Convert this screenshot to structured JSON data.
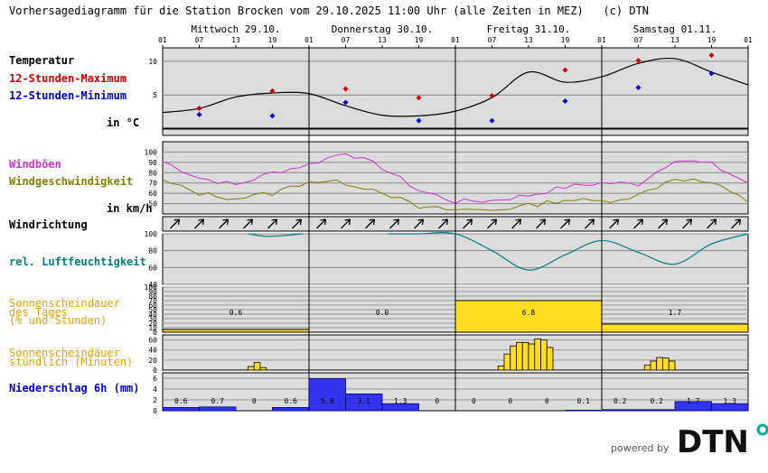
{
  "header": {
    "title": "Vorhersagediagramm für die Station Brocken vom 29.10.2025 11:00 Uhr (alle Zeiten in MEZ)",
    "copyright": "(c) DTN"
  },
  "days": [
    "Mittwoch 29.10.",
    "Donnerstag 30.10.",
    "Freitag 31.10.",
    "Samstag 01.11."
  ],
  "hour_ticks": [
    "01",
    "07",
    "13",
    "19",
    "01",
    "07",
    "13",
    "19",
    "01",
    "07",
    "13",
    "19",
    "01",
    "07",
    "13",
    "19",
    "01"
  ],
  "labels": {
    "temperature": "Temperatur",
    "tmax": "12-Stunden-Maximum",
    "tmin": "12-Stunden-Minimum",
    "temp_unit": "in °C",
    "gust": "Windböen",
    "wind_speed": "Windgeschwindigkeit",
    "wind_unit": "in km/h",
    "wind_dir": "Windrichtung",
    "humidity": "rel. Luftfeuchtigkeit",
    "sun_daily_1": "Sonnenscheindauer",
    "sun_daily_2": "des Tages",
    "sun_daily_3": "(% und Stunden)",
    "sun_hourly_1": "Sonnenscheindauer",
    "sun_hourly_2": "stündlich (Minuten)",
    "precip": "Niederschlag 6h (mm)"
  },
  "brand": {
    "powered_by": "powered by",
    "logo": "DTN"
  },
  "colors": {
    "max": "#cc0000",
    "min": "#0000cc",
    "gust": "#cc33cc",
    "wind": "#808000",
    "humidity": "#008080",
    "sun": "#e8a000",
    "sun_fill": "#ffdd22",
    "precip": "#0000dd",
    "precip_fill": "#3333ee"
  },
  "chart_data": [
    {
      "type": "line",
      "name": "temperature",
      "ylim": [
        -1,
        12
      ],
      "yticks": [
        5,
        10
      ],
      "x_hours": [
        0,
        6,
        12,
        18,
        24,
        30,
        36,
        42,
        48,
        54,
        60,
        66,
        72,
        78,
        84,
        90,
        96
      ],
      "values": [
        2.4,
        3.0,
        4.7,
        5.3,
        5.2,
        3.4,
        2.0,
        1.9,
        2.6,
        4.6,
        8.4,
        6.9,
        7.7,
        9.7,
        10.4,
        8.4,
        6.5
      ],
      "tmax": [
        {
          "x": 6,
          "y": 3.0
        },
        {
          "x": 18,
          "y": 5.6
        },
        {
          "x": 30,
          "y": 5.9
        },
        {
          "x": 42,
          "y": 4.6
        },
        {
          "x": 54,
          "y": 4.9
        },
        {
          "x": 66,
          "y": 8.7
        },
        {
          "x": 78,
          "y": 10.1
        },
        {
          "x": 90,
          "y": 10.9
        }
      ],
      "tmin": [
        {
          "x": 6,
          "y": 2.1
        },
        {
          "x": 18,
          "y": 1.9
        },
        {
          "x": 30,
          "y": 3.9
        },
        {
          "x": 42,
          "y": 1.2
        },
        {
          "x": 54,
          "y": 1.2
        },
        {
          "x": 66,
          "y": 4.1
        },
        {
          "x": 78,
          "y": 6.1
        },
        {
          "x": 90,
          "y": 8.2
        }
      ]
    },
    {
      "type": "line",
      "name": "wind",
      "ylim": [
        40,
        110
      ],
      "yticks": [
        50,
        60,
        70,
        80,
        90,
        100
      ],
      "x_hours": [
        0,
        6,
        12,
        18,
        24,
        30,
        36,
        42,
        48,
        54,
        60,
        66,
        72,
        78,
        84,
        90,
        96
      ],
      "gust": [
        91,
        75,
        68,
        80,
        88,
        100,
        85,
        63,
        52,
        53,
        58,
        66,
        70,
        69,
        93,
        88,
        70
      ],
      "speed": [
        72,
        60,
        55,
        60,
        72,
        70,
        62,
        46,
        44,
        44,
        48,
        54,
        52,
        58,
        75,
        70,
        52
      ]
    },
    {
      "type": "line",
      "name": "wind_direction",
      "arrows": 24,
      "angle_deg": 45
    },
    {
      "type": "line",
      "name": "humidity",
      "ylim": [
        40,
        100
      ],
      "yticks": [
        40,
        60,
        80,
        100
      ],
      "segments": [
        {
          "x": [
            14,
            17,
            20,
            23
          ],
          "y": [
            100,
            97,
            98,
            100
          ]
        },
        {
          "x": [
            37,
            42,
            48,
            54,
            60,
            66,
            72,
            78,
            84,
            90,
            96
          ],
          "y": [
            100,
            100,
            100,
            80,
            57,
            75,
            92,
            78,
            64,
            88,
            100
          ]
        }
      ]
    },
    {
      "type": "bar",
      "name": "sun_daily",
      "ylim": [
        0,
        100
      ],
      "yticks": [
        0,
        10,
        20,
        30,
        40,
        50,
        60,
        70,
        80,
        90,
        100
      ],
      "categories": [
        "29.10.",
        "30.10.",
        "31.10.",
        "01.11."
      ],
      "percent": [
        6,
        0,
        70,
        18
      ],
      "hours_label": [
        "0.6",
        "0.0",
        "6.8",
        "1.7"
      ]
    },
    {
      "type": "bar",
      "name": "sun_hourly",
      "ylim": [
        0,
        70
      ],
      "yticks": [
        0,
        20,
        40,
        60
      ],
      "bars": [
        {
          "h": 14,
          "v": 7
        },
        {
          "h": 15,
          "v": 15
        },
        {
          "h": 16,
          "v": 5
        },
        {
          "h": 55,
          "v": 8
        },
        {
          "h": 56,
          "v": 32
        },
        {
          "h": 57,
          "v": 48
        },
        {
          "h": 58,
          "v": 55
        },
        {
          "h": 59,
          "v": 55
        },
        {
          "h": 60,
          "v": 52
        },
        {
          "h": 61,
          "v": 62
        },
        {
          "h": 62,
          "v": 60
        },
        {
          "h": 63,
          "v": 45
        },
        {
          "h": 79,
          "v": 10
        },
        {
          "h": 80,
          "v": 18
        },
        {
          "h": 81,
          "v": 25
        },
        {
          "h": 82,
          "v": 24
        },
        {
          "h": 83,
          "v": 18
        }
      ]
    },
    {
      "type": "bar",
      "name": "precip_6h",
      "ylim": [
        0,
        7
      ],
      "yticks": [
        0,
        2,
        4,
        6
      ],
      "values": [
        0.6,
        0.7,
        0,
        0.6,
        5.9,
        3.1,
        1.3,
        0,
        0,
        0,
        0,
        0.1,
        0.2,
        0.2,
        1.7,
        1.3
      ],
      "labels": [
        "0.6",
        "0.7",
        "0",
        "0.6",
        "5.9",
        "3.1",
        "1.3",
        "0",
        "0",
        "0",
        "0",
        "0.1",
        "0.2",
        "0.2",
        "1.7",
        "1.3"
      ]
    }
  ]
}
